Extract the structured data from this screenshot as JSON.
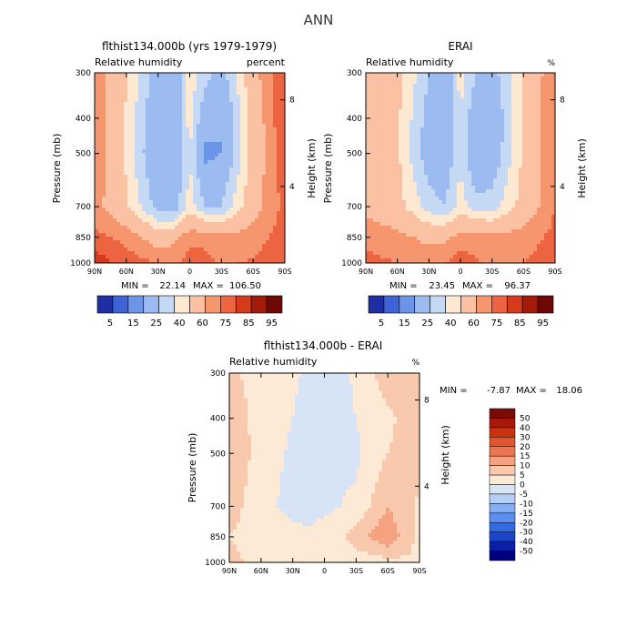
{
  "figure": {
    "title": "ANN"
  },
  "chart_data": [
    {
      "type": "heatmap",
      "title": "flthist134.000b (yrs 1979-1979)",
      "subtitle_left": "Relative humidity",
      "subtitle_right": "percent",
      "xlabel": "",
      "ylabel": "Pressure (mb)",
      "ylabel_right": "Height (km)",
      "x_ticks": [
        "90N",
        "60N",
        "30N",
        "0",
        "30S",
        "60S",
        "90S"
      ],
      "y_ticks": [
        300,
        400,
        500,
        700,
        850,
        1000
      ],
      "y_log_scale": true,
      "ylim": [
        1000,
        300
      ],
      "right_ticks": [
        "8",
        "4"
      ],
      "stats": {
        "min_label": "MIN =",
        "min": "22.14",
        "max_label": "MAX =",
        "max": "106.50"
      },
      "colorbar": {
        "orientation": "horizontal",
        "labels": [
          "5",
          "15",
          "25",
          "40",
          "60",
          "75",
          "85",
          "95"
        ]
      },
      "field": {
        "lat": [
          90,
          60,
          30,
          15,
          0,
          -15,
          -30,
          -60,
          -90
        ],
        "plev": [
          300,
          400,
          500,
          700,
          850,
          1000
        ],
        "values": [
          [
            82,
            62,
            33,
            30,
            55,
            45,
            35,
            70,
            95
          ],
          [
            85,
            58,
            28,
            28,
            55,
            30,
            25,
            65,
            95
          ],
          [
            83,
            58,
            25,
            27,
            50,
            22,
            25,
            65,
            92
          ],
          [
            80,
            62,
            35,
            32,
            55,
            40,
            40,
            70,
            88
          ],
          [
            88,
            82,
            68,
            72,
            82,
            82,
            78,
            80,
            90
          ],
          [
            102,
            90,
            85,
            82,
            90,
            88,
            84,
            86,
            95
          ]
        ]
      }
    },
    {
      "type": "heatmap",
      "title": "ERAI",
      "subtitle_left": "Relative humidity",
      "subtitle_right": "%",
      "xlabel": "",
      "ylabel": "Pressure (mb)",
      "ylabel_right": "Height (km)",
      "x_ticks": [
        "90N",
        "60N",
        "30N",
        "0",
        "30S",
        "60S",
        "90S"
      ],
      "y_ticks": [
        300,
        400,
        500,
        700,
        850,
        1000
      ],
      "y_log_scale": true,
      "ylim": [
        1000,
        300
      ],
      "right_ticks": [
        "8",
        "4"
      ],
      "stats": {
        "min_label": "MIN =",
        "min": "23.45",
        "max_label": "MAX =",
        "max": "96.37"
      },
      "colorbar": {
        "orientation": "horizontal",
        "labels": [
          "5",
          "15",
          "25",
          "40",
          "60",
          "75",
          "85",
          "95"
        ]
      },
      "field": {
        "lat": [
          90,
          60,
          30,
          15,
          0,
          -15,
          -30,
          -60,
          -90
        ],
        "plev": [
          300,
          400,
          500,
          700,
          850,
          1000
        ],
        "values": [
          [
            75,
            65,
            40,
            28,
            55,
            40,
            35,
            60,
            85
          ],
          [
            72,
            62,
            35,
            28,
            50,
            30,
            28,
            62,
            85
          ],
          [
            70,
            62,
            32,
            30,
            48,
            25,
            30,
            62,
            85
          ],
          [
            72,
            65,
            45,
            40,
            55,
            45,
            45,
            65,
            85
          ],
          [
            82,
            78,
            72,
            72,
            80,
            80,
            78,
            80,
            88
          ],
          [
            88,
            85,
            82,
            84,
            90,
            86,
            84,
            85,
            90
          ]
        ]
      }
    },
    {
      "type": "heatmap",
      "title": "flthist134.000b - ERAI",
      "subtitle_left": "Relative humidity",
      "subtitle_right": "%",
      "xlabel": "",
      "ylabel": "Pressure (mb)",
      "ylabel_right": "Height (km)",
      "x_ticks": [
        "90N",
        "60N",
        "30N",
        "0",
        "30S",
        "60S",
        "90S"
      ],
      "y_ticks": [
        300,
        400,
        500,
        700,
        850,
        1000
      ],
      "y_log_scale": true,
      "ylim": [
        1000,
        300
      ],
      "right_ticks": [
        "8",
        "4"
      ],
      "stats": {
        "min_label": "MIN =",
        "min": "-7.87",
        "max_label": "MAX =",
        "max": "18.06"
      },
      "colorbar": {
        "orientation": "vertical",
        "labels": [
          "50",
          "40",
          "30",
          "20",
          "15",
          "10",
          "5",
          "0",
          "-5",
          "-10",
          "-15",
          "-20",
          "-30",
          "-40",
          "-50"
        ]
      },
      "field": {
        "lat": [
          90,
          60,
          30,
          15,
          0,
          -15,
          -30,
          -60,
          -90
        ],
        "plev": [
          300,
          400,
          500,
          700,
          850,
          1000
        ],
        "values": [
          [
            6,
            3,
            1,
            -1,
            -4,
            -2,
            1,
            8,
            7
          ],
          [
            8,
            3,
            0,
            -2,
            -3,
            -1,
            0,
            4,
            8
          ],
          [
            9,
            3,
            -1,
            -2,
            -2,
            -1,
            -1,
            5,
            7
          ],
          [
            7,
            2,
            -2,
            -2,
            -1,
            0,
            1,
            10,
            4
          ],
          [
            5,
            3,
            2,
            1,
            2,
            3,
            8,
            14,
            3
          ],
          [
            6,
            4,
            3,
            2,
            2,
            3,
            2,
            3,
            5
          ]
        ]
      }
    }
  ]
}
